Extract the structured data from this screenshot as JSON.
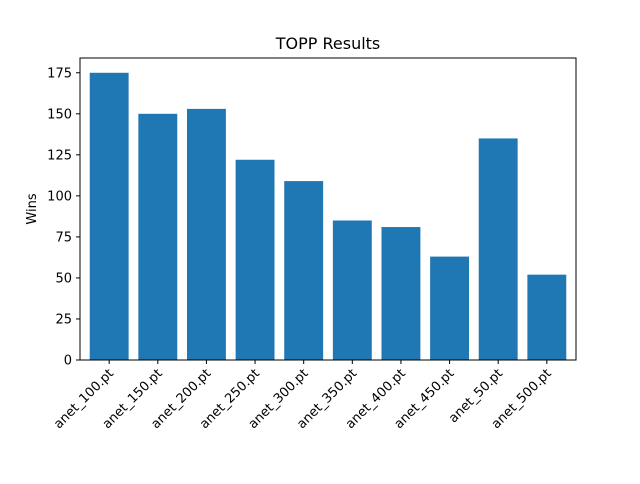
{
  "chart_data": {
    "type": "bar",
    "title": "TOPP Results",
    "xlabel": "",
    "ylabel": "Wins",
    "categories": [
      "anet_100.pt",
      "anet_150.pt",
      "anet_200.pt",
      "anet_250.pt",
      "anet_300.pt",
      "anet_350.pt",
      "anet_400.pt",
      "anet_450.pt",
      "anet_50.pt",
      "anet_500.pt"
    ],
    "values": [
      175,
      150,
      153,
      122,
      109,
      85,
      81,
      63,
      135,
      52
    ],
    "ylim": [
      0,
      184
    ],
    "yticks": [
      0,
      25,
      50,
      75,
      100,
      125,
      150,
      175
    ],
    "bar_color": "#1f77b4",
    "grid": false,
    "legend": "none"
  }
}
